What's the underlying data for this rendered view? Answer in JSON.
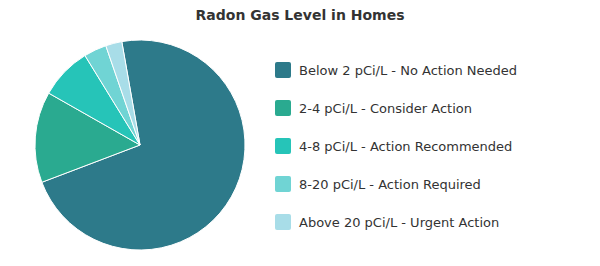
{
  "chart_data": {
    "type": "pie",
    "title": "Radon Gas Level in Homes",
    "categories": [
      "Below 2 pCi/L - No Action Needed",
      "2-4 pCi/L - Consider Action",
      "4-8 pCi/L - Action Recommended",
      "8-20 pCi/L - Action Required",
      "Above 20 pCi/L - Urgent Action"
    ],
    "values": [
      72.0,
      14.0,
      8.0,
      3.5,
      2.5
    ],
    "colors": [
      "#2d7a8a",
      "#2aaa90",
      "#26c4b8",
      "#70d4d4",
      "#a8dde8"
    ],
    "legend": "right"
  }
}
